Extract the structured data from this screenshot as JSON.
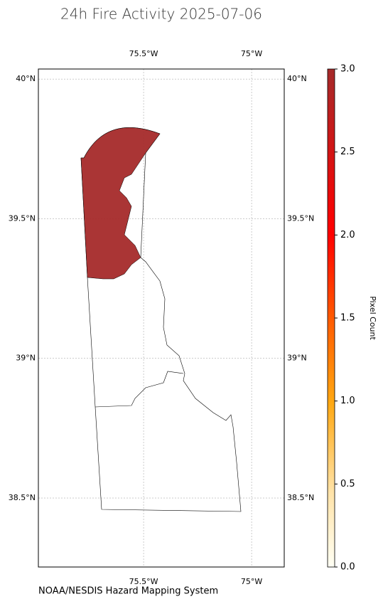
{
  "title": "24h Fire Activity 2025-07-06",
  "map": {
    "lonlim": [
      -75.987,
      -74.849
    ],
    "latlim": [
      38.253,
      40.036
    ],
    "lon_ticks": [
      {
        "value": -75.5,
        "label": "75.5°W"
      },
      {
        "value": -75,
        "label": "75°W"
      }
    ],
    "lat_ticks": [
      {
        "value": 40,
        "label": "40°N"
      },
      {
        "value": 39.5,
        "label": "39.5°N"
      },
      {
        "value": 39,
        "label": "39°N"
      },
      {
        "value": 38.5,
        "label": "38.5°N"
      }
    ],
    "grid": true,
    "fire_area": {
      "value": 3
    }
  },
  "colorbar": {
    "label": "Pixel Count",
    "lim": [
      0,
      3
    ],
    "ticks": [
      {
        "value": 0,
        "label": "0.0"
      },
      {
        "value": 0.5,
        "label": "0.5"
      },
      {
        "value": 1,
        "label": "1.0"
      },
      {
        "value": 1.5,
        "label": "1.5"
      },
      {
        "value": 2,
        "label": "2.0"
      },
      {
        "value": 2.5,
        "label": "2.5"
      },
      {
        "value": 3,
        "label": "3.0"
      }
    ]
  },
  "source": "NOAA/NESDIS Hazard Mapping System"
}
